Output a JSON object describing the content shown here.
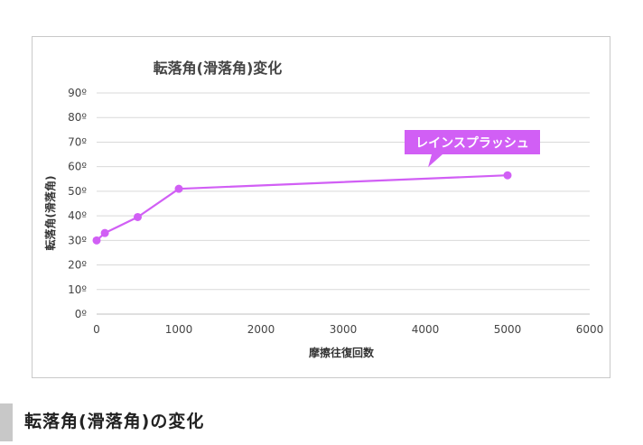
{
  "chart_data": {
    "type": "line",
    "title": "転落角(滑落角)変化",
    "xlabel": "摩擦往復回数",
    "ylabel": "転落角(滑落角)",
    "xlim": [
      0,
      6000
    ],
    "ylim": [
      0,
      90
    ],
    "x_ticks": [
      "0",
      "1000",
      "2000",
      "3000",
      "4000",
      "5000",
      "6000"
    ],
    "y_ticks": [
      "0º",
      "10º",
      "20º",
      "30º",
      "40º",
      "50º",
      "60º",
      "70º",
      "80º",
      "90º"
    ],
    "grid": true,
    "series": [
      {
        "name": "レインスプラッシュ",
        "color": "#d15ff5",
        "x": [
          0,
          100,
          500,
          1000,
          5000
        ],
        "y": [
          30,
          33,
          39.5,
          51,
          56.5
        ]
      }
    ],
    "annotation": {
      "text": "レインスプラッシュ",
      "color": "#d15ff5",
      "target_index": 4
    }
  },
  "footer": {
    "title": "転落角(滑落角)の変化"
  }
}
